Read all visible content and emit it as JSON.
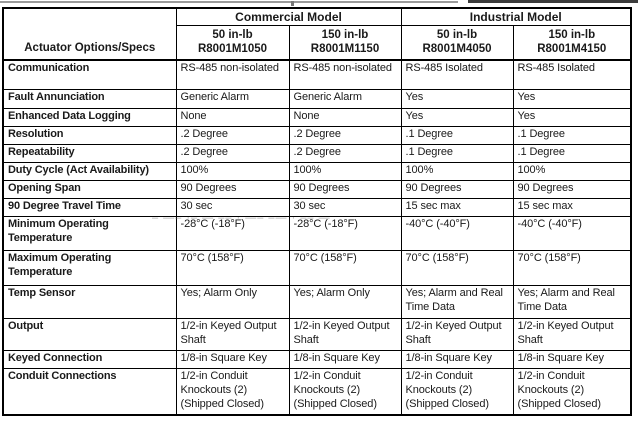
{
  "table": {
    "corner_header": "Actuator Options/Specs",
    "groups": [
      {
        "label": "Commercial Model"
      },
      {
        "label": "Industrial Model"
      }
    ],
    "columns": [
      {
        "torque": "50 in-lb",
        "model": "R8001M1050"
      },
      {
        "torque": "150 in-lb",
        "model": "R8001M1150"
      },
      {
        "torque": "50 in-lb",
        "model": "R8001M4050"
      },
      {
        "torque": "150 in-lb",
        "model": "R8001M4150"
      }
    ],
    "rows": [
      {
        "label": "Communication",
        "values": [
          "RS-485 non-isolated",
          "RS-485 non-isolated",
          "RS-485 Isolated",
          "RS-485 Isolated"
        ]
      },
      {
        "label": "Fault Annunciation",
        "values": [
          "Generic Alarm",
          "Generic Alarm",
          "Yes",
          "Yes"
        ]
      },
      {
        "label": "Enhanced Data Logging",
        "values": [
          "None",
          "None",
          "Yes",
          "Yes"
        ]
      },
      {
        "label": "Resolution",
        "values": [
          ".2 Degree",
          ".2 Degree",
          ".1 Degree",
          ".1 Degree"
        ]
      },
      {
        "label": "Repeatability",
        "values": [
          ".2 Degree",
          ".2 Degree",
          ".1 Degree",
          ".1 Degree"
        ]
      },
      {
        "label": "Duty Cycle (Act Availability)",
        "values": [
          "100%",
          "100%",
          "100%",
          "100%"
        ]
      },
      {
        "label": "Opening Span",
        "values": [
          "90 Degrees",
          "90 Degrees",
          "90 Degrees",
          "90 Degrees"
        ]
      },
      {
        "label": "90 Degree Travel Time",
        "values": [
          "30 sec",
          "30 sec",
          "15 sec max",
          "15 sec max"
        ]
      },
      {
        "label": "Minimum Operating Temperature",
        "values": [
          "-28°C (-18°F)",
          "-28°C (-18°F)",
          "-40°C (-40°F)",
          "-40°C (-40°F)"
        ]
      },
      {
        "label": "Maximum Operating Temperature",
        "values": [
          "70°C (158°F)",
          "70°C (158°F)",
          "70°C (158°F)",
          "70°C (158°F)"
        ]
      },
      {
        "label": "Temp Sensor",
        "values": [
          "Yes; Alarm Only",
          "Yes; Alarm Only",
          "Yes; Alarm and Real Time Data",
          "Yes; Alarm and Real Time Data"
        ]
      },
      {
        "label": "Output",
        "values": [
          "1/2-in Keyed Output Shaft",
          "1/2-in Keyed Output Shaft",
          "1/2-in Keyed Output Shaft",
          "1/2-in Keyed Output Shaft"
        ]
      },
      {
        "label": "Keyed Connection",
        "values": [
          "1/8-in Square Key",
          "1/8-in Square Key",
          "1/8-in Square Key",
          "1/8-in Square Key"
        ]
      },
      {
        "label": "Conduit Connections",
        "values": [
          "1/2-in Conduit Knockouts (2) (Shipped Closed)",
          "1/2-in Conduit Knockouts (2) (Shipped Closed)",
          "1/2-in Conduit Knockouts (2) (Shipped Closed)",
          "1/2-in Conduit Knockouts (2) (Shipped Closed)"
        ]
      }
    ]
  },
  "watermark": {
    "marks": "– —– ·–  — –– · —–  –— · –– —"
  },
  "colors": {
    "border": "#000000",
    "text": "#1a1a1a",
    "background": "#ffffff",
    "watermark": "#6e6e6e"
  }
}
